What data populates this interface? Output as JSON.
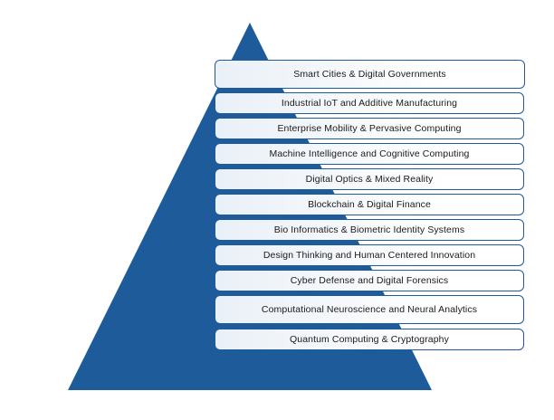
{
  "colors": {
    "pyramid_fill": "#1e5b9b",
    "box_border": "#1f5a99",
    "box_fill_light": "#ffffff",
    "box_fill_tint": "#eaf0f7",
    "text": "#1a1a1a"
  },
  "layers": [
    {
      "label": "Smart Cities & Digital Governments"
    },
    {
      "label": "Industrial IoT and Additive Manufacturing"
    },
    {
      "label": "Enterprise Mobility & Pervasive Computing"
    },
    {
      "label": "Machine Intelligence and Cognitive Computing"
    },
    {
      "label": "Digital Optics & Mixed Reality"
    },
    {
      "label": "Blockchain & Digital Finance"
    },
    {
      "label": "Bio Informatics & Biometric Identity Systems"
    },
    {
      "label": "Design Thinking and Human Centered Innovation"
    },
    {
      "label": "Cyber Defense and Digital Forensics"
    },
    {
      "label": "Computational Neuroscience and Neural Analytics"
    },
    {
      "label": "Quantum Computing & Cryptography"
    }
  ]
}
